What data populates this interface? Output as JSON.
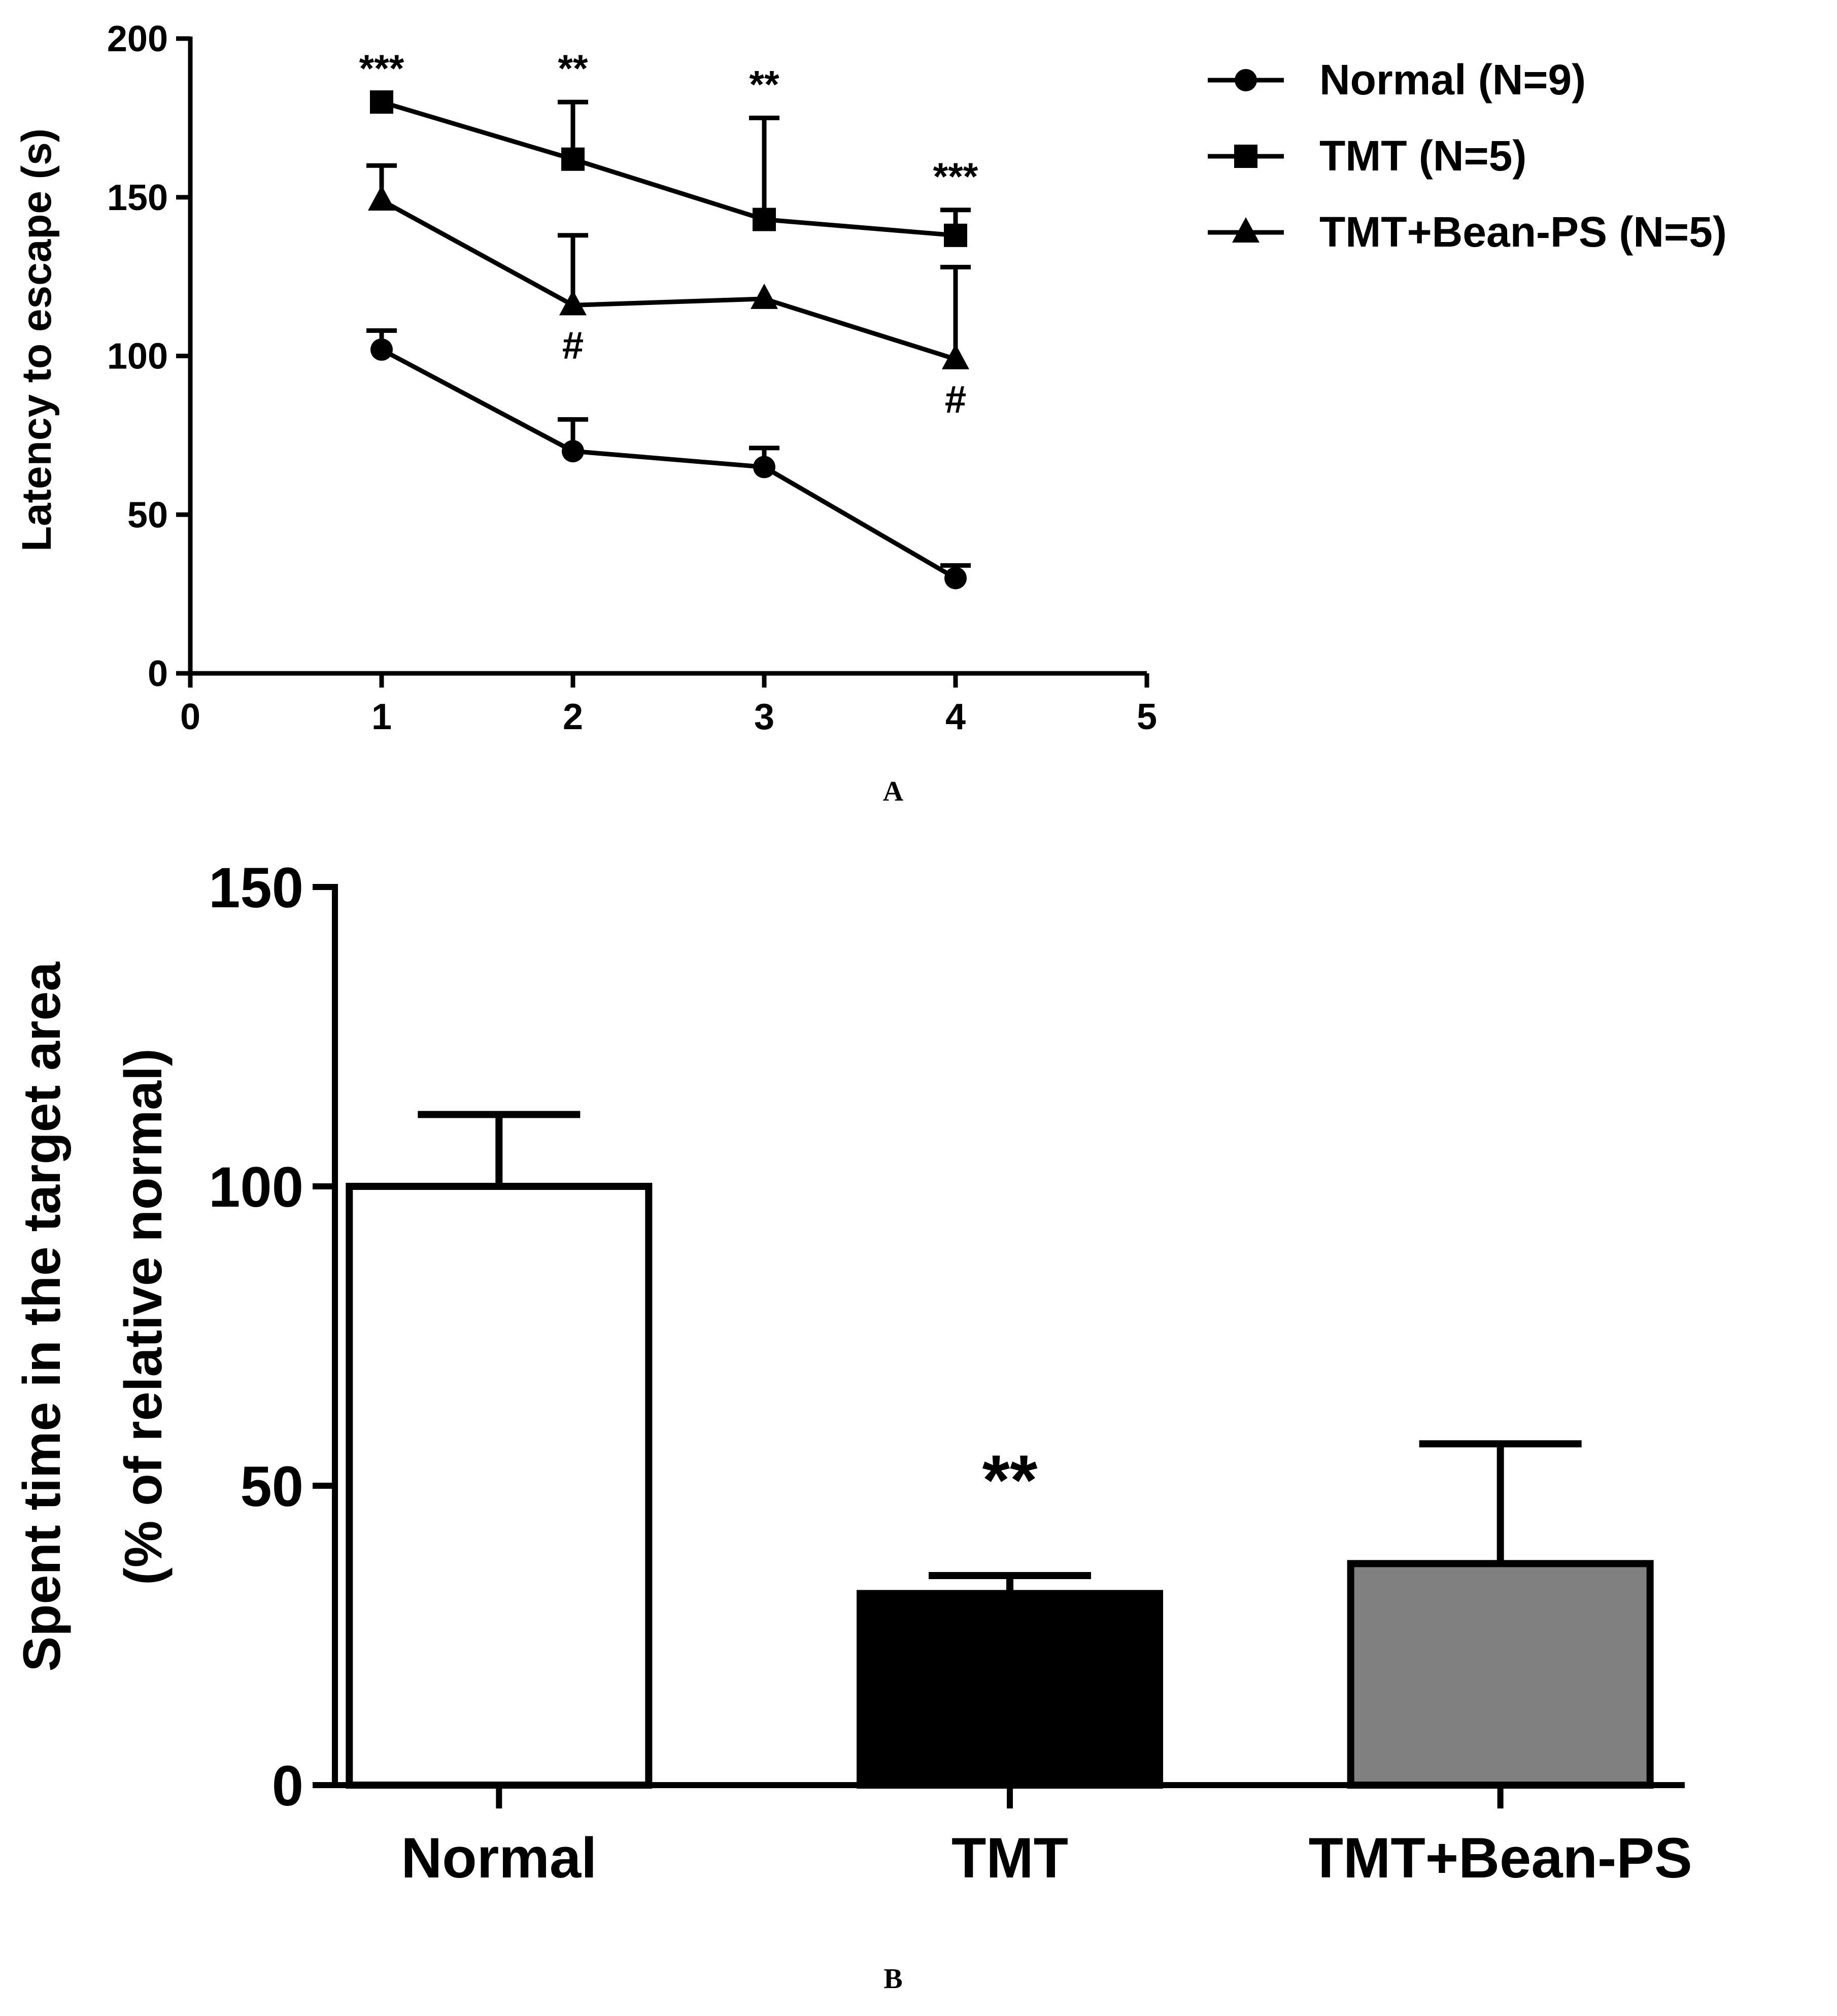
{
  "chart_data": [
    {
      "panel": "A",
      "type": "line",
      "ylabel": "Latency to escape (s)",
      "xlabel": "",
      "xlim": [
        0,
        5
      ],
      "ylim": [
        0,
        200
      ],
      "xticks": [
        "0",
        "1",
        "2",
        "3",
        "4",
        "5"
      ],
      "yticks": [
        "0",
        "50",
        "100",
        "150",
        "200"
      ],
      "x": [
        1,
        2,
        3,
        4
      ],
      "series": [
        {
          "name": "Normal (N=9)",
          "marker": "circle",
          "values": [
            102,
            70,
            65,
            30
          ],
          "errors": [
            6,
            10,
            6,
            4
          ]
        },
        {
          "name": "TMT (N=5)",
          "marker": "square",
          "values": [
            180,
            162,
            143,
            138
          ],
          "errors": [
            0,
            18,
            32,
            8
          ]
        },
        {
          "name": "TMT+Bean-PS (N=5)",
          "marker": "triangle",
          "values": [
            149,
            116,
            118,
            99
          ],
          "errors": [
            11,
            22,
            0,
            29
          ]
        }
      ],
      "significance_above": [
        {
          "x": 1,
          "label": "***"
        },
        {
          "x": 2,
          "label": "**"
        },
        {
          "x": 3,
          "label": "**"
        },
        {
          "x": 4,
          "label": "***"
        }
      ],
      "significance_below": [
        {
          "x": 2,
          "label": "#"
        },
        {
          "x": 4,
          "label": "#"
        }
      ],
      "caption": "A"
    },
    {
      "panel": "B",
      "type": "bar",
      "ylabel_line1": "Spent time in the target area",
      "ylabel_line2": "(% of relative normal)",
      "ylim": [
        0,
        150
      ],
      "yticks": [
        "0",
        "50",
        "100",
        "150"
      ],
      "categories": [
        "Normal",
        "TMT",
        "TMT+Bean-PS"
      ],
      "values": [
        100,
        32,
        37
      ],
      "errors": [
        12,
        3,
        20
      ],
      "bar_colors": [
        "#ffffff",
        "#000000",
        "#808080"
      ],
      "significance": [
        {
          "category": "TMT",
          "label": "**"
        }
      ],
      "caption": "B"
    }
  ]
}
